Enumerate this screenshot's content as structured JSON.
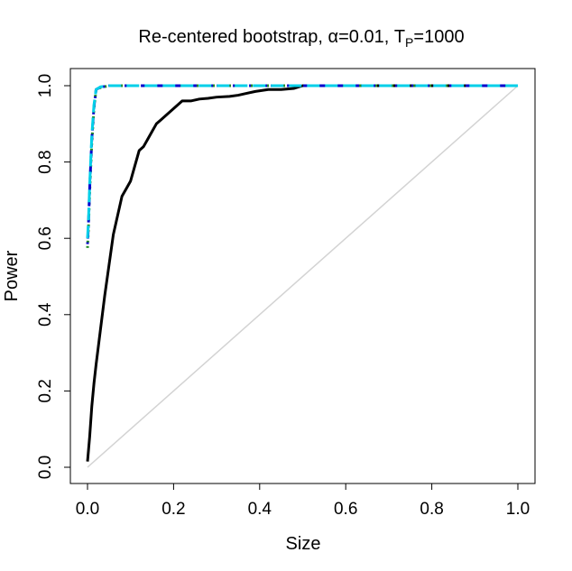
{
  "chart_data": {
    "type": "line",
    "title": {
      "prefix": "Re-centered bootstrap, ",
      "alpha_symbol": "α",
      "alpha_value": "=0.01, ",
      "tp_main": "T",
      "tp_sub": "P",
      "tp_value": "=1000"
    },
    "xlabel": "Size",
    "ylabel": "Power",
    "xlim": [
      0,
      1
    ],
    "ylim": [
      0,
      1
    ],
    "x_ticks": [
      "0.0",
      "0.2",
      "0.4",
      "0.6",
      "0.8",
      "1.0"
    ],
    "y_ticks": [
      "0.0",
      "0.2",
      "0.4",
      "0.6",
      "0.8",
      "1.0"
    ],
    "grid": false,
    "legend": "none",
    "reference_line": {
      "x": [
        0,
        1
      ],
      "y": [
        0,
        1
      ],
      "color": "#d3d3d3"
    },
    "series": [
      {
        "color": "#000000",
        "style": "solid",
        "x": [
          0.0,
          0.005,
          0.01,
          0.015,
          0.02,
          0.03,
          0.04,
          0.05,
          0.06,
          0.07,
          0.08,
          0.09,
          0.1,
          0.11,
          0.12,
          0.13,
          0.14,
          0.15,
          0.16,
          0.17,
          0.18,
          0.2,
          0.22,
          0.24,
          0.26,
          0.28,
          0.3,
          0.33,
          0.35,
          0.37,
          0.39,
          0.42,
          0.45,
          0.48,
          0.5,
          0.55,
          0.6,
          0.7,
          0.8,
          0.9,
          1.0
        ],
        "y": [
          0.015,
          0.08,
          0.16,
          0.22,
          0.27,
          0.36,
          0.45,
          0.53,
          0.61,
          0.66,
          0.71,
          0.73,
          0.75,
          0.79,
          0.83,
          0.84,
          0.86,
          0.88,
          0.9,
          0.91,
          0.92,
          0.94,
          0.96,
          0.96,
          0.965,
          0.967,
          0.97,
          0.972,
          0.975,
          0.98,
          0.985,
          0.99,
          0.99,
          0.993,
          1.0,
          1.0,
          1.0,
          1.0,
          1.0,
          1.0,
          1.0
        ]
      },
      {
        "color": "#228b22",
        "style": "dotted",
        "x": [
          0.0,
          0.002,
          0.005,
          0.01,
          0.015,
          0.02,
          0.03,
          0.05,
          0.1,
          0.2,
          0.3,
          0.5,
          0.7,
          0.9,
          1.0
        ],
        "y": [
          0.575,
          0.62,
          0.72,
          0.85,
          0.94,
          0.99,
          0.995,
          1.0,
          1.0,
          1.0,
          1.0,
          1.0,
          1.0,
          1.0,
          1.0
        ]
      },
      {
        "color": "#0000cd",
        "style": "dotdash",
        "x": [
          0.0,
          0.002,
          0.005,
          0.01,
          0.015,
          0.02,
          0.03,
          0.05,
          0.1,
          0.2,
          0.3,
          0.5,
          0.7,
          0.9,
          1.0
        ],
        "y": [
          0.585,
          0.63,
          0.73,
          0.86,
          0.945,
          0.99,
          0.996,
          1.0,
          1.0,
          1.0,
          1.0,
          1.0,
          1.0,
          1.0,
          1.0
        ]
      },
      {
        "color": "#00cfe8",
        "style": "longdash",
        "x": [
          0.0,
          0.002,
          0.005,
          0.01,
          0.015,
          0.02,
          0.03,
          0.05,
          0.1,
          0.2,
          0.3,
          0.5,
          0.7,
          0.9,
          1.0
        ],
        "y": [
          0.6,
          0.64,
          0.74,
          0.87,
          0.95,
          0.99,
          0.997,
          1.0,
          1.0,
          1.0,
          1.0,
          1.0,
          1.0,
          1.0,
          1.0
        ]
      }
    ]
  }
}
